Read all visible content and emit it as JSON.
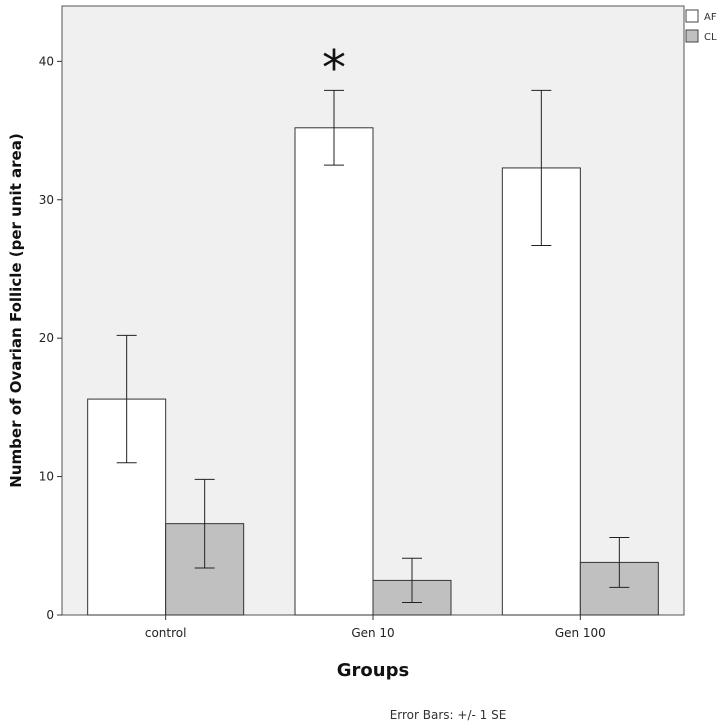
{
  "chart_data": {
    "type": "bar",
    "title": "",
    "xlabel": "Groups",
    "ylabel": "Number of Ovarian Follicle (per unit area)",
    "categories": [
      "control",
      "Gen 10",
      "Gen 100"
    ],
    "series": [
      {
        "name": "AF",
        "values": [
          15.6,
          35.2,
          32.3
        ],
        "err": [
          4.6,
          2.7,
          5.6
        ],
        "color": "#ffffff"
      },
      {
        "name": "CL",
        "values": [
          6.6,
          2.5,
          3.8
        ],
        "err": [
          3.2,
          1.6,
          1.8
        ],
        "color": "#c0c0c0"
      }
    ],
    "ylim": [
      0,
      44
    ],
    "yticks": [
      0,
      10,
      20,
      30,
      40
    ],
    "grid": false,
    "legend_position": "top-right",
    "annotations": [
      {
        "text": "*",
        "category": "Gen 10",
        "series": "AF"
      }
    ],
    "footnote": "Error Bars: +/- 1 SE",
    "plot_background": "#f0f0f0"
  }
}
